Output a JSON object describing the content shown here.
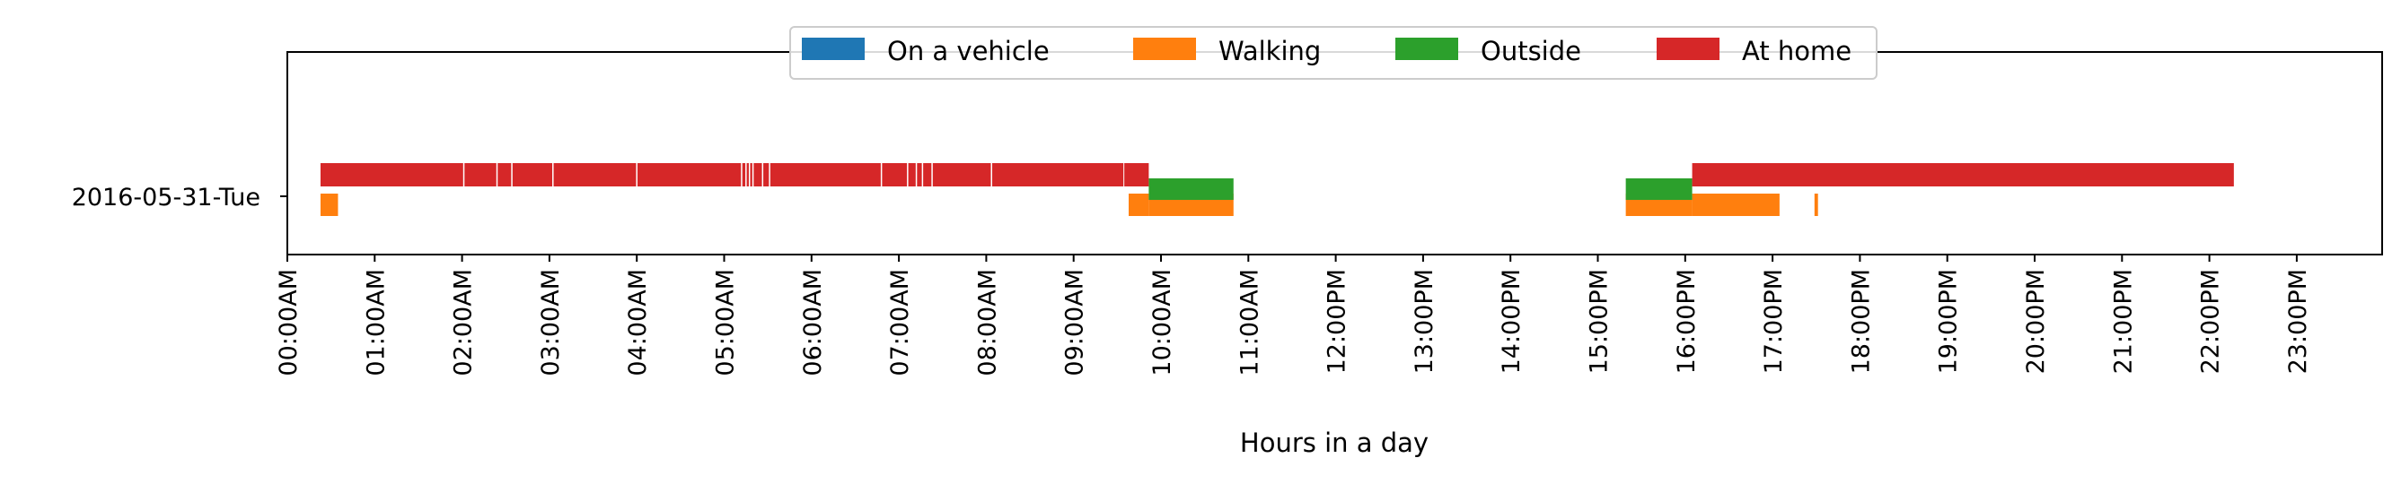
{
  "chart_data": {
    "type": "timeline",
    "xlabel": "Hours in a day",
    "xlim": [
      0,
      24
    ],
    "row_label": "2016-05-31-Tue",
    "x_ticks": [
      "00:00AM",
      "01:00AM",
      "02:00AM",
      "03:00AM",
      "04:00AM",
      "05:00AM",
      "06:00AM",
      "07:00AM",
      "08:00AM",
      "09:00AM",
      "10:00AM",
      "11:00AM",
      "12:00PM",
      "13:00PM",
      "14:00PM",
      "15:00PM",
      "16:00PM",
      "17:00PM",
      "18:00PM",
      "19:00PM",
      "20:00PM",
      "21:00PM",
      "22:00PM",
      "23:00PM"
    ],
    "legend_position": "top-center",
    "series": [
      {
        "name": "On a vehicle",
        "color": "#1f77b4",
        "intervals": []
      },
      {
        "name": "Walking",
        "color": "#ff7f0e",
        "intervals": [
          [
            0.38,
            0.58
          ],
          [
            9.63,
            9.86
          ],
          [
            9.86,
            10.83
          ],
          [
            15.32,
            16.08
          ],
          [
            16.08,
            17.08
          ],
          [
            17.48,
            17.52
          ]
        ]
      },
      {
        "name": "Outside",
        "color": "#2ca02c",
        "intervals": [
          [
            9.86,
            10.83
          ],
          [
            15.32,
            16.08
          ]
        ]
      },
      {
        "name": "At home",
        "color": "#d62728",
        "intervals": [
          [
            0.38,
            9.57
          ],
          [
            9.58,
            9.86
          ],
          [
            16.08,
            22.28
          ]
        ]
      }
    ],
    "home_gaps": [
      2.02,
      2.4,
      2.57,
      3.04,
      4.0,
      5.2,
      5.25,
      5.29,
      5.33,
      5.44,
      5.52,
      6.8,
      7.1,
      7.2,
      7.27,
      7.38,
      8.06
    ]
  }
}
